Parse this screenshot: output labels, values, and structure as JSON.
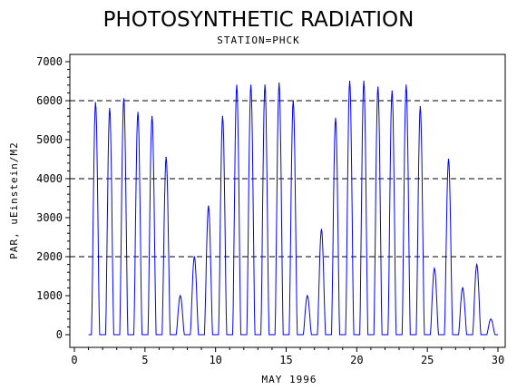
{
  "chart_data": {
    "type": "line",
    "title": "PHOTOSYNTHETIC RADIATION",
    "subtitle": "STATION=PHCK",
    "xlabel": "MAY 1996",
    "ylabel": "PAR, uEinstein/M2",
    "xlim": [
      0,
      30
    ],
    "ylim": [
      0,
      7000
    ],
    "x_ticks": [
      0,
      5,
      10,
      15,
      20,
      25,
      30
    ],
    "y_ticks": [
      0,
      1000,
      2000,
      3000,
      4000,
      5000,
      6000,
      7000
    ],
    "reference_lines": [
      2000,
      4000,
      6000
    ],
    "grid": false,
    "legend": "none",
    "line_color": "#0000ff",
    "daily_peaks": {
      "day": [
        1,
        2,
        3,
        4,
        5,
        6,
        7,
        8,
        9,
        10,
        11,
        12,
        13,
        14,
        15,
        16,
        17,
        18,
        19,
        20,
        21,
        22,
        23,
        24,
        25,
        26,
        27,
        28,
        29
      ],
      "peak_par": [
        5950,
        5800,
        6050,
        5700,
        5600,
        4550,
        1000,
        2000,
        3300,
        5600,
        6400,
        6400,
        6400,
        6450,
        6000,
        1000,
        2700,
        5550,
        6500,
        6500,
        6350,
        6250,
        6400,
        5850,
        1700,
        4500,
        1200,
        1800,
        400
      ]
    }
  }
}
